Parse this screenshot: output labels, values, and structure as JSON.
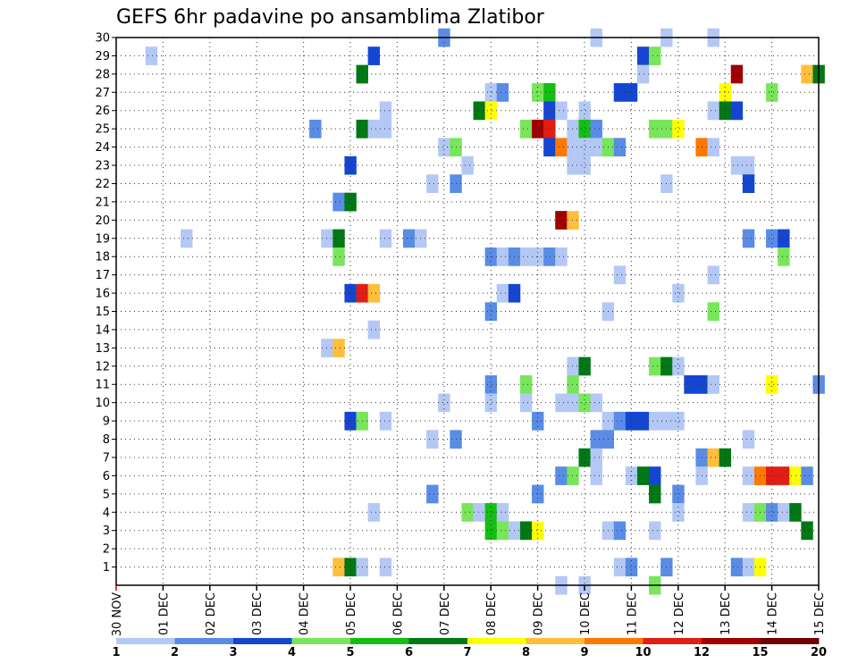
{
  "chart_data": {
    "type": "heatmap",
    "title": "GEFS 6hr padavine po ansamblima Zlatibor",
    "xlabel": "",
    "ylabel": "",
    "x_ticks": [
      "30 NOV",
      "01 DEC",
      "02 DEC",
      "03 DEC",
      "04 DEC",
      "05 DEC",
      "06 DEC",
      "07 DEC",
      "08 DEC",
      "09 DEC",
      "10 DEC",
      "11 DEC",
      "12 DEC",
      "13 DEC",
      "14 DEC",
      "15 DEC"
    ],
    "y_ticks": [
      1,
      2,
      3,
      4,
      5,
      6,
      7,
      8,
      9,
      10,
      11,
      12,
      13,
      14,
      15,
      16,
      17,
      18,
      19,
      20,
      21,
      22,
      23,
      24,
      25,
      26,
      27,
      28,
      29,
      30
    ],
    "xlim": [
      0,
      60
    ],
    "ylim": [
      0,
      30
    ],
    "x_unit": "6-hour steps from 30 NOV",
    "grid": true,
    "colorbar": {
      "labels": [
        "1",
        "2",
        "3",
        "4",
        "5",
        "6",
        "7",
        "8",
        "9",
        "10",
        "12",
        "15",
        "20"
      ],
      "colors": [
        "#b4c8f5",
        "#5a8ce6",
        "#1446d2",
        "#78e65a",
        "#14be14",
        "#007814",
        "#ffff00",
        "#ffbe3c",
        "#ff7800",
        "#e11e14",
        "#a00000",
        "#6e0000"
      ]
    },
    "cells": [
      [
        28,
        30,
        2
      ],
      [
        41,
        30,
        1
      ],
      [
        47,
        30,
        1
      ],
      [
        51,
        30,
        1
      ],
      [
        3,
        29,
        1
      ],
      [
        22,
        29,
        3
      ],
      [
        45,
        29,
        3
      ],
      [
        46,
        29,
        4
      ],
      [
        21,
        28,
        6
      ],
      [
        45,
        28,
        1
      ],
      [
        53,
        28,
        11
      ],
      [
        59,
        28,
        8
      ],
      [
        60,
        28,
        6
      ],
      [
        32,
        27,
        1
      ],
      [
        33,
        27,
        2
      ],
      [
        36,
        27,
        4
      ],
      [
        37,
        27,
        5
      ],
      [
        43,
        27,
        3
      ],
      [
        44,
        27,
        3
      ],
      [
        52,
        27,
        7
      ],
      [
        56,
        27,
        4
      ],
      [
        23,
        26,
        1
      ],
      [
        31,
        26,
        6
      ],
      [
        32,
        26,
        7
      ],
      [
        37,
        26,
        3
      ],
      [
        38,
        26,
        1
      ],
      [
        40,
        26,
        1
      ],
      [
        51,
        26,
        1
      ],
      [
        52,
        26,
        6
      ],
      [
        53,
        26,
        3
      ],
      [
        17,
        25,
        2
      ],
      [
        21,
        25,
        6
      ],
      [
        22,
        25,
        1
      ],
      [
        23,
        25,
        1
      ],
      [
        35,
        25,
        4
      ],
      [
        36,
        25,
        11
      ],
      [
        37,
        25,
        10
      ],
      [
        39,
        25,
        1
      ],
      [
        40,
        25,
        5
      ],
      [
        41,
        25,
        2
      ],
      [
        46,
        25,
        4
      ],
      [
        47,
        25,
        4
      ],
      [
        48,
        25,
        7
      ],
      [
        28,
        24,
        1
      ],
      [
        29,
        24,
        4
      ],
      [
        37,
        24,
        3
      ],
      [
        38,
        24,
        9
      ],
      [
        39,
        24,
        1
      ],
      [
        40,
        24,
        1
      ],
      [
        41,
        24,
        1
      ],
      [
        42,
        24,
        4
      ],
      [
        43,
        24,
        2
      ],
      [
        50,
        24,
        9
      ],
      [
        51,
        24,
        1
      ],
      [
        20,
        23,
        3
      ],
      [
        30,
        23,
        1
      ],
      [
        39,
        23,
        1
      ],
      [
        40,
        23,
        1
      ],
      [
        53,
        23,
        1
      ],
      [
        54,
        23,
        1
      ],
      [
        27,
        22,
        1
      ],
      [
        29,
        22,
        2
      ],
      [
        47,
        22,
        1
      ],
      [
        54,
        22,
        3
      ],
      [
        19,
        21,
        2
      ],
      [
        20,
        21,
        6
      ],
      [
        38,
        20,
        11
      ],
      [
        39,
        20,
        8
      ],
      [
        6,
        19,
        1
      ],
      [
        18,
        19,
        1
      ],
      [
        19,
        19,
        6
      ],
      [
        23,
        19,
        1
      ],
      [
        25,
        19,
        2
      ],
      [
        26,
        19,
        1
      ],
      [
        54,
        19,
        2
      ],
      [
        56,
        19,
        2
      ],
      [
        57,
        19,
        3
      ],
      [
        19,
        18,
        4
      ],
      [
        32,
        18,
        2
      ],
      [
        33,
        18,
        1
      ],
      [
        34,
        18,
        2
      ],
      [
        35,
        18,
        1
      ],
      [
        36,
        18,
        1
      ],
      [
        37,
        18,
        2
      ],
      [
        38,
        18,
        1
      ],
      [
        57,
        18,
        4
      ],
      [
        43,
        17,
        1
      ],
      [
        51,
        17,
        1
      ],
      [
        20,
        16,
        3
      ],
      [
        21,
        16,
        10
      ],
      [
        22,
        16,
        8
      ],
      [
        33,
        16,
        1
      ],
      [
        34,
        16,
        3
      ],
      [
        48,
        16,
        1
      ],
      [
        32,
        15,
        2
      ],
      [
        42,
        15,
        1
      ],
      [
        51,
        15,
        4
      ],
      [
        22,
        14,
        1
      ],
      [
        18,
        13,
        1
      ],
      [
        19,
        13,
        8
      ],
      [
        39,
        12,
        1
      ],
      [
        40,
        12,
        6
      ],
      [
        46,
        12,
        4
      ],
      [
        47,
        12,
        6
      ],
      [
        48,
        12,
        1
      ],
      [
        32,
        11,
        2
      ],
      [
        35,
        11,
        4
      ],
      [
        39,
        11,
        4
      ],
      [
        49,
        11,
        3
      ],
      [
        50,
        11,
        3
      ],
      [
        51,
        11,
        1
      ],
      [
        56,
        11,
        7
      ],
      [
        60,
        11,
        2
      ],
      [
        28,
        10,
        1
      ],
      [
        32,
        10,
        1
      ],
      [
        35,
        10,
        1
      ],
      [
        38,
        10,
        1
      ],
      [
        39,
        10,
        1
      ],
      [
        40,
        10,
        4
      ],
      [
        41,
        10,
        1
      ],
      [
        20,
        9,
        3
      ],
      [
        21,
        9,
        4
      ],
      [
        23,
        9,
        1
      ],
      [
        36,
        9,
        2
      ],
      [
        42,
        9,
        1
      ],
      [
        43,
        9,
        2
      ],
      [
        44,
        9,
        3
      ],
      [
        45,
        9,
        3
      ],
      [
        46,
        9,
        1
      ],
      [
        47,
        9,
        1
      ],
      [
        48,
        9,
        1
      ],
      [
        27,
        8,
        1
      ],
      [
        29,
        8,
        2
      ],
      [
        41,
        8,
        2
      ],
      [
        42,
        8,
        2
      ],
      [
        54,
        8,
        1
      ],
      [
        40,
        7,
        6
      ],
      [
        41,
        7,
        1
      ],
      [
        50,
        7,
        2
      ],
      [
        51,
        7,
        8
      ],
      [
        52,
        7,
        6
      ],
      [
        38,
        6,
        2
      ],
      [
        39,
        6,
        4
      ],
      [
        41,
        6,
        1
      ],
      [
        44,
        6,
        1
      ],
      [
        45,
        6,
        6
      ],
      [
        46,
        6,
        3
      ],
      [
        50,
        6,
        1
      ],
      [
        54,
        6,
        1
      ],
      [
        55,
        6,
        9
      ],
      [
        56,
        6,
        10
      ],
      [
        57,
        6,
        10
      ],
      [
        58,
        6,
        7
      ],
      [
        59,
        6,
        2
      ],
      [
        27,
        5,
        2
      ],
      [
        36,
        5,
        2
      ],
      [
        46,
        5,
        6
      ],
      [
        48,
        5,
        2
      ],
      [
        22,
        4,
        1
      ],
      [
        30,
        4,
        4
      ],
      [
        31,
        4,
        1
      ],
      [
        32,
        4,
        5
      ],
      [
        33,
        4,
        1
      ],
      [
        48,
        4,
        1
      ],
      [
        54,
        4,
        1
      ],
      [
        55,
        4,
        4
      ],
      [
        56,
        4,
        2
      ],
      [
        57,
        4,
        1
      ],
      [
        58,
        4,
        6
      ],
      [
        32,
        3,
        5
      ],
      [
        33,
        3,
        4
      ],
      [
        34,
        3,
        1
      ],
      [
        35,
        3,
        6
      ],
      [
        36,
        3,
        7
      ],
      [
        42,
        3,
        1
      ],
      [
        43,
        3,
        2
      ],
      [
        46,
        3,
        1
      ],
      [
        59,
        3,
        6
      ],
      [
        19,
        1,
        8
      ],
      [
        20,
        1,
        6
      ],
      [
        21,
        1,
        1
      ],
      [
        23,
        1,
        1
      ],
      [
        43,
        1,
        1
      ],
      [
        44,
        1,
        2
      ],
      [
        47,
        1,
        2
      ],
      [
        53,
        1,
        2
      ],
      [
        54,
        1,
        1
      ],
      [
        55,
        1,
        7
      ],
      [
        38,
        0,
        1
      ],
      [
        40,
        0,
        1
      ],
      [
        46,
        0,
        4
      ]
    ]
  }
}
